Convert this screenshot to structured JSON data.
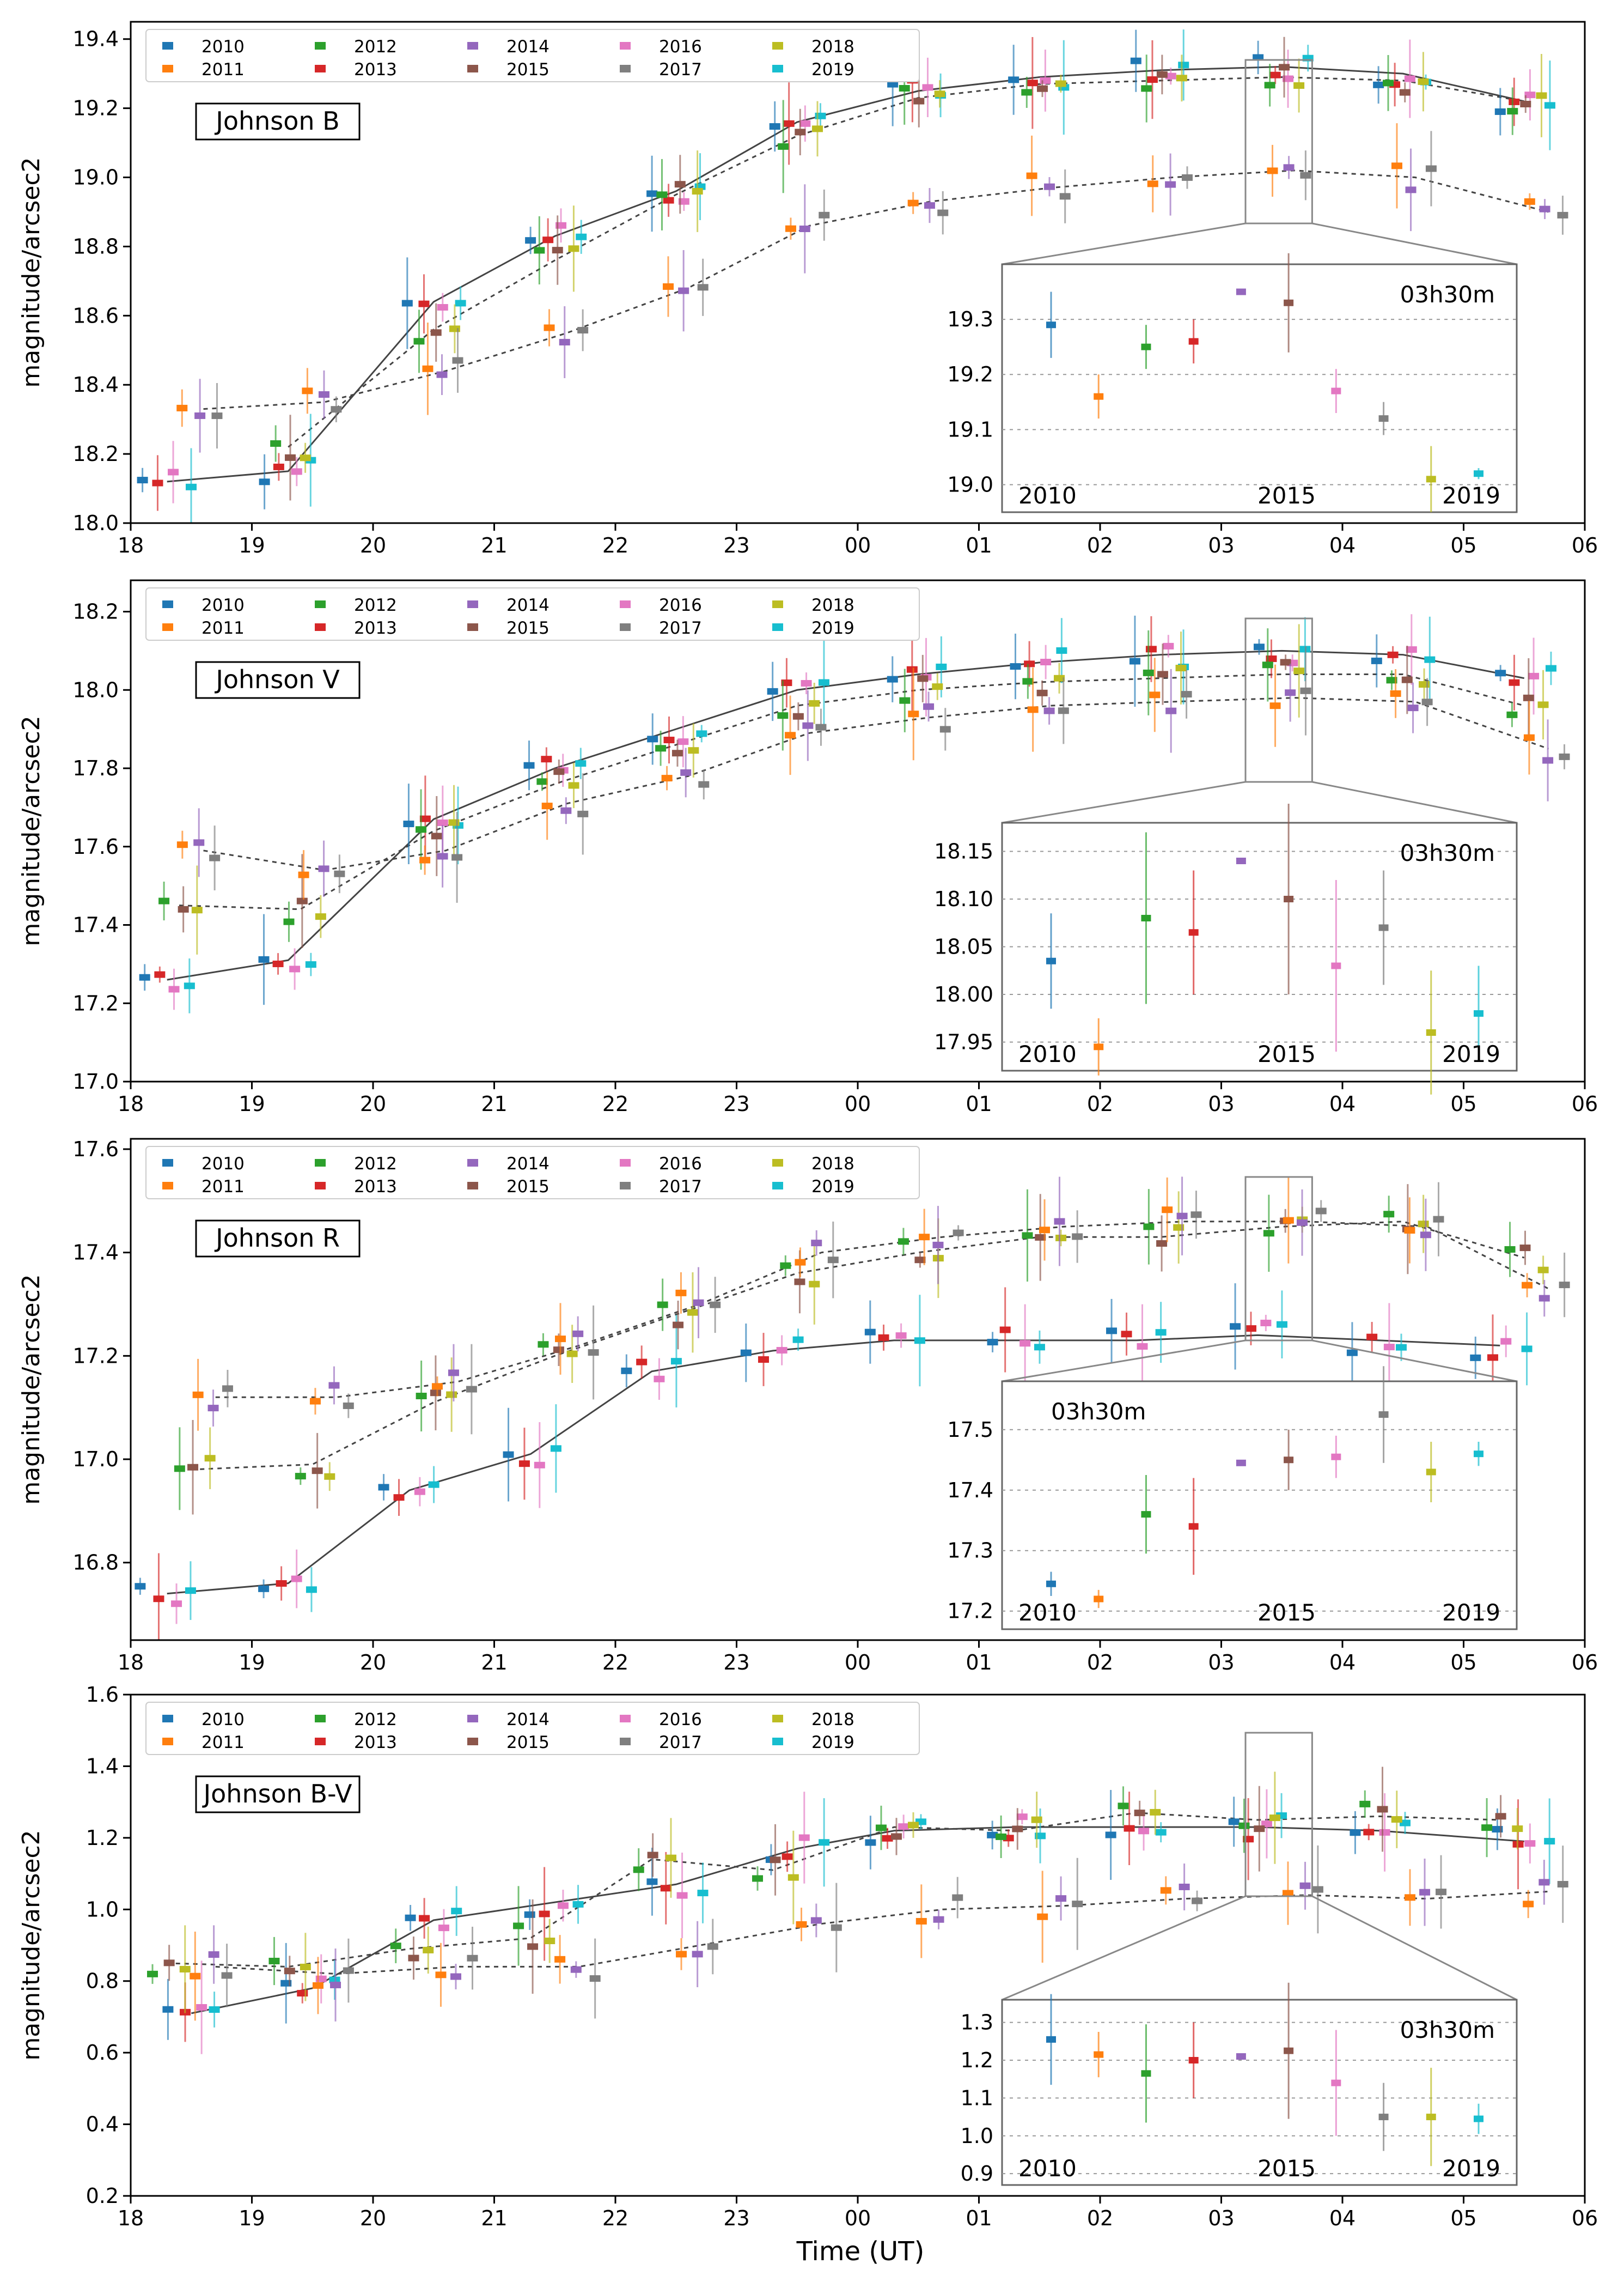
{
  "chart_data": {
    "type": "scatter",
    "xlabel": "Time (UT)",
    "x_tick_labels": [
      "18",
      "19",
      "20",
      "21",
      "22",
      "23",
      "00",
      "01",
      "02",
      "03",
      "04",
      "05",
      "06"
    ],
    "x_range_hours": [
      18,
      30
    ],
    "legend_years": [
      "2010",
      "2011",
      "2012",
      "2013",
      "2014",
      "2015",
      "2016",
      "2017",
      "2018",
      "2019"
    ],
    "year_colors": [
      "#1f77b4",
      "#ff7f0e",
      "#2ca02c",
      "#d62728",
      "#9467bd",
      "#8c564b",
      "#e377c2",
      "#7f7f7f",
      "#bcbd22",
      "#17becf"
    ],
    "inset_year_labels": [
      "2010",
      "2015",
      "2019"
    ],
    "inset_time_label": "03h30m",
    "panels": [
      {
        "band": "Johnson B",
        "ylabel": "magnitude/arcsec2",
        "ylim": [
          18.0,
          19.45
        ],
        "y_ticks": [
          "18.0",
          "18.2",
          "18.4",
          "18.6",
          "18.8",
          "19.0",
          "19.2",
          "19.4"
        ],
        "curve_upper": [
          [
            18.3,
            18.12
          ],
          [
            19.3,
            18.15
          ],
          [
            20.5,
            18.64
          ],
          [
            21.5,
            18.83
          ],
          [
            22.5,
            18.96
          ],
          [
            23.5,
            19.16
          ],
          [
            24.5,
            19.25
          ],
          [
            25.5,
            19.29
          ],
          [
            26.5,
            19.31
          ],
          [
            27.5,
            19.32
          ],
          [
            28.5,
            19.3
          ],
          [
            29.5,
            19.22
          ]
        ],
        "curve_middle": [
          [
            19.3,
            18.22
          ],
          [
            20.5,
            18.56
          ],
          [
            21.5,
            18.76
          ],
          [
            22.5,
            18.95
          ],
          [
            23.5,
            19.12
          ],
          [
            24.5,
            19.23
          ],
          [
            25.5,
            19.27
          ],
          [
            26.5,
            19.28
          ],
          [
            27.5,
            19.29
          ],
          [
            28.5,
            19.28
          ],
          [
            29.5,
            19.22
          ]
        ],
        "curve_lower": [
          [
            18.6,
            18.33
          ],
          [
            19.6,
            18.35
          ],
          [
            20.6,
            18.44
          ],
          [
            21.6,
            18.55
          ],
          [
            22.6,
            18.68
          ],
          [
            23.6,
            18.86
          ],
          [
            24.6,
            18.93
          ],
          [
            25.6,
            18.97
          ],
          [
            26.6,
            19.0
          ],
          [
            27.6,
            19.02
          ],
          [
            28.6,
            19.0
          ],
          [
            29.7,
            18.9
          ]
        ],
        "inset": {
          "ylim": [
            18.95,
            19.4
          ],
          "y_ticks": [
            "19.0",
            "19.1",
            "19.2",
            "19.3"
          ],
          "values": [
            19.29,
            19.16,
            19.25,
            19.26,
            19.35,
            19.33,
            19.17,
            19.12,
            19.01,
            19.02
          ],
          "errors": [
            0.06,
            0.04,
            0.04,
            0.04,
            0.0,
            0.09,
            0.04,
            0.03,
            0.06,
            0.01
          ]
        }
      },
      {
        "band": "Johnson V",
        "ylabel": "magnitude/arcsec2",
        "ylim": [
          17.0,
          18.28
        ],
        "y_ticks": [
          "17.0",
          "17.2",
          "17.4",
          "17.6",
          "17.8",
          "18.0",
          "18.2"
        ],
        "curve_upper": [
          [
            18.3,
            17.26
          ],
          [
            19.3,
            17.31
          ],
          [
            20.5,
            17.67
          ],
          [
            21.5,
            17.8
          ],
          [
            22.5,
            17.9
          ],
          [
            23.5,
            18.0
          ],
          [
            24.5,
            18.04
          ],
          [
            25.5,
            18.07
          ],
          [
            26.5,
            18.09
          ],
          [
            27.5,
            18.1
          ],
          [
            28.5,
            18.09
          ],
          [
            29.5,
            18.03
          ]
        ],
        "curve_middle": [
          [
            18.4,
            17.45
          ],
          [
            19.4,
            17.44
          ],
          [
            20.5,
            17.64
          ],
          [
            21.5,
            17.76
          ],
          [
            22.5,
            17.86
          ],
          [
            23.5,
            17.96
          ],
          [
            24.5,
            18.0
          ],
          [
            25.5,
            18.02
          ],
          [
            26.5,
            18.03
          ],
          [
            27.5,
            18.04
          ],
          [
            28.5,
            18.04
          ],
          [
            29.5,
            17.96
          ]
        ],
        "curve_lower": [
          [
            18.6,
            17.59
          ],
          [
            19.6,
            17.54
          ],
          [
            20.6,
            17.59
          ],
          [
            21.6,
            17.71
          ],
          [
            22.6,
            17.78
          ],
          [
            23.6,
            17.89
          ],
          [
            24.6,
            17.93
          ],
          [
            25.6,
            17.96
          ],
          [
            26.6,
            17.97
          ],
          [
            27.6,
            17.98
          ],
          [
            28.6,
            17.97
          ],
          [
            29.7,
            17.85
          ]
        ],
        "inset": {
          "ylim": [
            17.92,
            18.18
          ],
          "y_ticks": [
            "17.95",
            "18.00",
            "18.05",
            "18.10",
            "18.15"
          ],
          "values": [
            18.035,
            17.945,
            18.08,
            18.065,
            18.14,
            18.1,
            18.03,
            18.07,
            17.96,
            17.98
          ],
          "errors": [
            0.05,
            0.03,
            0.09,
            0.065,
            0.0,
            0.1,
            0.09,
            0.06,
            0.065,
            0.05
          ]
        }
      },
      {
        "band": "Johnson R",
        "ylabel": "magnitude/arcsec2",
        "ylim": [
          16.65,
          17.62
        ],
        "y_ticks": [
          "16.8",
          "17.0",
          "17.2",
          "17.4",
          "17.6"
        ],
        "curve_upper": [
          [
            18.3,
            16.74
          ],
          [
            19.3,
            16.76
          ],
          [
            20.3,
            16.94
          ],
          [
            21.3,
            17.01
          ],
          [
            22.3,
            17.17
          ],
          [
            23.3,
            17.21
          ],
          [
            24.3,
            17.23
          ],
          [
            25.3,
            17.23
          ],
          [
            26.3,
            17.23
          ],
          [
            27.3,
            17.24
          ],
          [
            28.3,
            17.23
          ],
          [
            29.3,
            17.22
          ]
        ],
        "curve_middle": [
          [
            18.5,
            16.98
          ],
          [
            19.5,
            16.99
          ],
          [
            20.5,
            17.11
          ],
          [
            21.5,
            17.2
          ],
          [
            22.5,
            17.28
          ],
          [
            23.5,
            17.36
          ],
          [
            24.5,
            17.4
          ],
          [
            25.5,
            17.43
          ],
          [
            26.5,
            17.43
          ],
          [
            27.5,
            17.45
          ],
          [
            28.5,
            17.46
          ],
          [
            29.5,
            17.39
          ]
        ],
        "curve_lower": [
          [
            18.7,
            17.12
          ],
          [
            19.7,
            17.12
          ],
          [
            20.7,
            17.15
          ],
          [
            21.7,
            17.22
          ],
          [
            22.7,
            17.3
          ],
          [
            23.7,
            17.4
          ],
          [
            24.7,
            17.43
          ],
          [
            25.7,
            17.45
          ],
          [
            26.7,
            17.46
          ],
          [
            27.7,
            17.46
          ],
          [
            28.7,
            17.45
          ],
          [
            29.7,
            17.33
          ]
        ],
        "inset": {
          "ylim": [
            17.17,
            17.58
          ],
          "y_ticks": [
            "17.2",
            "17.3",
            "17.4",
            "17.5"
          ],
          "values": [
            17.245,
            17.22,
            17.36,
            17.34,
            17.445,
            17.45,
            17.455,
            17.525,
            17.43,
            17.46
          ],
          "errors": [
            0.02,
            0.015,
            0.065,
            0.08,
            0.0,
            0.05,
            0.035,
            0.08,
            0.05,
            0.02
          ]
        }
      },
      {
        "band": "Johnson B-V",
        "ylabel": "magnitude/arcsec2",
        "ylim": [
          0.2,
          1.6
        ],
        "y_ticks": [
          "0.2",
          "0.4",
          "0.6",
          "0.8",
          "1.0",
          "1.2",
          "1.4",
          "1.6"
        ],
        "curve_upper": [
          [
            18.5,
            0.71
          ],
          [
            19.5,
            0.78
          ],
          [
            20.5,
            0.97
          ],
          [
            21.5,
            1.02
          ],
          [
            22.5,
            1.07
          ],
          [
            23.5,
            1.17
          ],
          [
            24.3,
            1.22
          ],
          [
            25.3,
            1.23
          ],
          [
            26.3,
            1.23
          ],
          [
            27.3,
            1.23
          ],
          [
            28.3,
            1.22
          ],
          [
            29.5,
            1.19
          ]
        ],
        "curve_middle": [
          [
            18.3,
            0.85
          ],
          [
            19.3,
            0.84
          ],
          [
            20.3,
            0.89
          ],
          [
            21.3,
            0.92
          ],
          [
            22.3,
            1.14
          ],
          [
            23.3,
            1.11
          ],
          [
            24.3,
            1.23
          ],
          [
            25.3,
            1.22
          ],
          [
            26.3,
            1.27
          ],
          [
            27.3,
            1.25
          ],
          [
            28.3,
            1.26
          ],
          [
            29.3,
            1.25
          ]
        ],
        "curve_lower": [
          [
            18.7,
            0.84
          ],
          [
            19.7,
            0.82
          ],
          [
            20.7,
            0.84
          ],
          [
            21.7,
            0.84
          ],
          [
            22.7,
            0.9
          ],
          [
            23.7,
            0.96
          ],
          [
            24.7,
            1.0
          ],
          [
            25.7,
            1.01
          ],
          [
            26.7,
            1.03
          ],
          [
            27.7,
            1.04
          ],
          [
            28.7,
            1.03
          ],
          [
            29.7,
            1.05
          ]
        ],
        "inset": {
          "ylim": [
            0.87,
            1.36
          ],
          "y_ticks": [
            "0.9",
            "1.0",
            "1.1",
            "1.2",
            "1.3"
          ],
          "values": [
            1.255,
            1.215,
            1.165,
            1.2,
            1.21,
            1.225,
            1.14,
            1.05,
            1.05,
            1.045
          ],
          "errors": [
            0.12,
            0.06,
            0.13,
            0.1,
            0.0,
            0.18,
            0.14,
            0.09,
            0.13,
            0.04
          ]
        }
      }
    ]
  }
}
